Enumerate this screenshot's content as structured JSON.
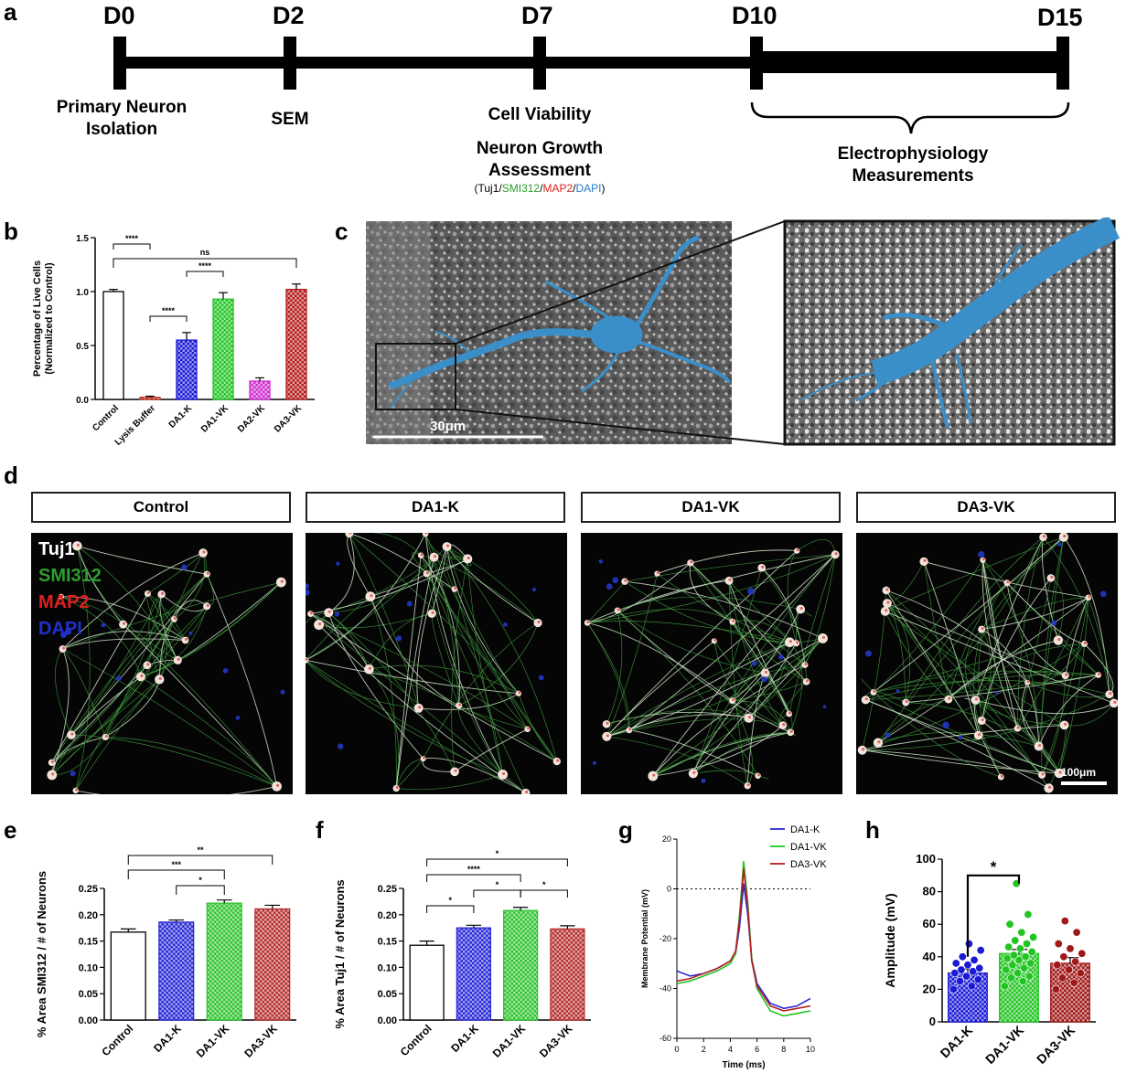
{
  "panel_letters": {
    "a": "a",
    "b": "b",
    "c": "c",
    "d": "d",
    "e": "e",
    "f": "f",
    "g": "g",
    "h": "h"
  },
  "timeline": {
    "days": [
      "D0",
      "D2",
      "D7",
      "D10",
      "D15"
    ],
    "labels": {
      "d0": "Primary Neuron Isolation",
      "d0_line1": "Primary Neuron",
      "d0_line2": "Isolation",
      "d2": "SEM",
      "d7_a": "Cell Viability",
      "d7_b1": "Neuron Growth",
      "d7_b2": "Assessment",
      "stain_open": "(Tuj1/",
      "stain_smi": "SMI312",
      "stain_sep1": "/",
      "stain_map": "MAP2",
      "stain_sep2": "/",
      "stain_dapi": "DAPI",
      "stain_close": ")",
      "ephys1": "Electrophysiology",
      "ephys2": "Measurements"
    }
  },
  "sem": {
    "scale_label": "30μm"
  },
  "micrographs": {
    "headers": [
      "Control",
      "DA1-K",
      "DA1-VK",
      "DA3-VK"
    ],
    "stains": {
      "tuj1": "Tuj1",
      "smi312": "SMI312",
      "map2": "MAP2",
      "dapi": "DAPI"
    },
    "scale_label": "100μm",
    "colors": {
      "tuj1": "#ffffff",
      "smi312": "#2e9e2e",
      "map2": "#e02020",
      "dapi": "#2030d0"
    }
  },
  "chart_data": [
    {
      "panel": "b",
      "type": "bar",
      "ylabel": "Percentage of Live Cells (Normalized to Control)",
      "ylabel_line1": "Percentage of Live Cells",
      "ylabel_line2": "(Normalized to Control)",
      "ylim": [
        0,
        1.5
      ],
      "yticks": [
        "0.0",
        "0.5",
        "1.0",
        "1.5"
      ],
      "categories": [
        "Control",
        "Lysis Buffer",
        "DA1-K",
        "DA1-VK",
        "DA2-VK",
        "DA3-VK"
      ],
      "values": [
        1.0,
        0.02,
        0.55,
        0.93,
        0.17,
        1.02
      ],
      "errors": [
        0.02,
        0.01,
        0.07,
        0.06,
        0.03,
        0.05
      ],
      "colors": [
        "#ffffff",
        "#c0392b",
        "#1a1ad6",
        "#22c422",
        "#d030d0",
        "#b51e1e"
      ],
      "significance": [
        {
          "label": "****"
        },
        {
          "label": "****"
        },
        {
          "label": "****"
        },
        {
          "label": "ns"
        }
      ]
    },
    {
      "panel": "e",
      "type": "bar",
      "ylabel": "% Area SMI312 / # of  Neurons",
      "ylim": [
        0,
        0.25
      ],
      "yticks": [
        "0.00",
        "0.05",
        "0.10",
        "0.15",
        "0.20",
        "0.25"
      ],
      "categories": [
        "Control",
        "DA1-K",
        "DA1-VK",
        "DA3-VK"
      ],
      "values": [
        0.167,
        0.186,
        0.222,
        0.211
      ],
      "errors": [
        0.006,
        0.004,
        0.006,
        0.007
      ],
      "colors": [
        "#ffffff",
        "#2a2ad8",
        "#2ec42e",
        "#b53030"
      ],
      "significance": [
        {
          "label": "**"
        },
        {
          "label": "***"
        },
        {
          "label": "*"
        }
      ]
    },
    {
      "panel": "f",
      "type": "bar",
      "ylabel": "% Area Tuj1 / # of Neurons",
      "ylim": [
        0,
        0.25
      ],
      "yticks": [
        "0.00",
        "0.05",
        "0.10",
        "0.15",
        "0.20",
        "0.25"
      ],
      "categories": [
        "Control",
        "DA1-K",
        "DA1-VK",
        "DA3-VK"
      ],
      "values": [
        0.142,
        0.175,
        0.208,
        0.173
      ],
      "errors": [
        0.008,
        0.005,
        0.006,
        0.006
      ],
      "colors": [
        "#ffffff",
        "#2a2ad8",
        "#2ec42e",
        "#b53030"
      ],
      "significance": [
        {
          "label": "*"
        },
        {
          "label": "****"
        },
        {
          "label": "*"
        },
        {
          "label": "*"
        },
        {
          "label": "*"
        }
      ]
    },
    {
      "panel": "g",
      "type": "line",
      "xlabel": "Time (ms)",
      "ylabel": "Membrane Potential (mV)",
      "xlim": [
        0,
        10
      ],
      "ylim": [
        -60,
        20
      ],
      "xticks": [
        "0",
        "2",
        "4",
        "6",
        "8",
        "10"
      ],
      "yticks": [
        "20",
        "0",
        "-20",
        "-40",
        "-60"
      ],
      "series": [
        {
          "name": "DA1-K",
          "color": "#2a2ad8",
          "x": [
            0,
            1,
            2,
            3,
            4,
            4.4,
            4.7,
            5.0,
            5.3,
            5.6,
            6,
            7,
            8,
            9,
            10
          ],
          "y": [
            -33,
            -35,
            -34,
            -32,
            -29,
            -26,
            -15,
            2,
            -10,
            -28,
            -38,
            -46,
            -48,
            -47,
            -44
          ]
        },
        {
          "name": "DA1-VK",
          "color": "#22c422",
          "x": [
            0,
            1,
            2,
            3,
            4,
            4.4,
            4.7,
            5.0,
            5.3,
            5.6,
            6,
            7,
            8,
            9,
            10
          ],
          "y": [
            -38,
            -37,
            -35,
            -33,
            -30,
            -26,
            -10,
            11,
            -5,
            -28,
            -40,
            -49,
            -51,
            -50,
            -49
          ]
        },
        {
          "name": "DA3-VK",
          "color": "#b51e1e",
          "x": [
            0,
            1,
            2,
            3,
            4,
            4.4,
            4.7,
            5.0,
            5.3,
            5.6,
            6,
            7,
            8,
            9,
            10
          ],
          "y": [
            -37,
            -36,
            -34,
            -32,
            -29,
            -25,
            -12,
            8,
            -7,
            -29,
            -39,
            -47,
            -49,
            -48,
            -47
          ]
        }
      ]
    },
    {
      "panel": "h",
      "type": "bar",
      "ylabel": "Amplitude (mV)",
      "ylim": [
        0,
        100
      ],
      "yticks": [
        "0",
        "20",
        "40",
        "60",
        "80",
        "100"
      ],
      "categories": [
        "DA1-K",
        "DA1-VK",
        "DA3-VK"
      ],
      "values": [
        30,
        42,
        36
      ],
      "errors": [
        2.5,
        2.5,
        3.5
      ],
      "colors": [
        "#1a1ad6",
        "#22c422",
        "#a01818"
      ],
      "points": [
        [
          20,
          22,
          25,
          26,
          28,
          30,
          31,
          32,
          33,
          35,
          36,
          38,
          40,
          44,
          48
        ],
        [
          22,
          25,
          27,
          28,
          30,
          32,
          33,
          35,
          36,
          38,
          39,
          40,
          41,
          43,
          45,
          46,
          48,
          50,
          52,
          55,
          60,
          66,
          85
        ],
        [
          20,
          24,
          27,
          30,
          32,
          35,
          37,
          40,
          42,
          45,
          48,
          55,
          62
        ]
      ],
      "significance": [
        {
          "label": "*"
        }
      ]
    }
  ]
}
